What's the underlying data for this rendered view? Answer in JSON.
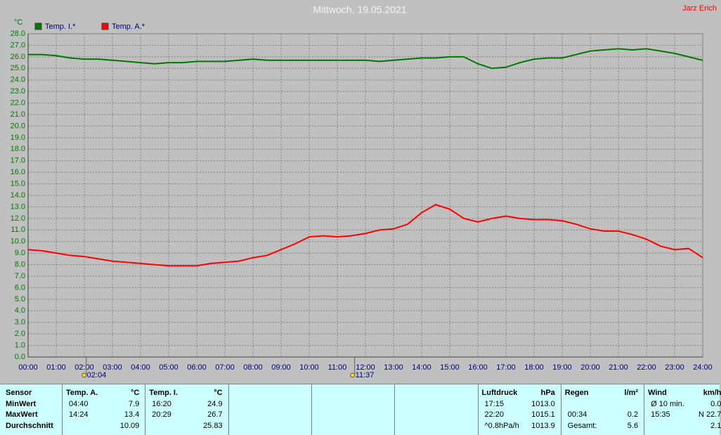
{
  "chart_data": {
    "type": "line",
    "title": "Mittwoch, 19.05.2021",
    "author": "Jarz Erich",
    "y_unit": "°C",
    "x": [
      0,
      0.5,
      1,
      1.5,
      2,
      2.5,
      3,
      3.5,
      4,
      4.5,
      5,
      5.5,
      6,
      6.5,
      7,
      7.5,
      8,
      8.5,
      9,
      9.5,
      10,
      10.5,
      11,
      11.5,
      12,
      12.5,
      13,
      13.5,
      14,
      14.5,
      15,
      15.5,
      16,
      16.5,
      17,
      17.5,
      18,
      18.5,
      19,
      19.5,
      20,
      20.5,
      21,
      21.5,
      22,
      22.5,
      23,
      23.5,
      24
    ],
    "series": [
      {
        "name": "Temp. I.*",
        "color": "#007800",
        "values": [
          26.2,
          26.2,
          26.1,
          25.9,
          25.8,
          25.8,
          25.7,
          25.6,
          25.5,
          25.4,
          25.5,
          25.5,
          25.6,
          25.6,
          25.6,
          25.7,
          25.8,
          25.7,
          25.7,
          25.7,
          25.7,
          25.7,
          25.7,
          25.7,
          25.7,
          25.6,
          25.7,
          25.8,
          25.9,
          25.9,
          26.0,
          26.0,
          25.4,
          25.0,
          25.1,
          25.5,
          25.8,
          25.9,
          25.9,
          26.2,
          26.5,
          26.6,
          26.7,
          26.6,
          26.7,
          26.5,
          26.3,
          26.0,
          25.7
        ]
      },
      {
        "name": "Temp. A.*",
        "color": "#ff0000",
        "values": [
          9.3,
          9.2,
          9.0,
          8.8,
          8.7,
          8.5,
          8.3,
          8.2,
          8.1,
          8.0,
          7.9,
          7.9,
          7.9,
          8.1,
          8.2,
          8.3,
          8.6,
          8.8,
          9.3,
          9.8,
          10.4,
          10.5,
          10.4,
          10.5,
          10.7,
          11.0,
          11.1,
          11.5,
          12.5,
          13.2,
          12.8,
          12.0,
          11.7,
          12.0,
          12.2,
          12.0,
          11.9,
          11.9,
          11.8,
          11.5,
          11.1,
          10.9,
          10.9,
          10.6,
          10.2,
          9.6,
          9.3,
          9.4,
          8.6
        ]
      }
    ],
    "xlim": [
      0,
      24
    ],
    "xticks": [
      {
        "value": 0,
        "label": "00:00"
      },
      {
        "value": 1,
        "label": "01:00"
      },
      {
        "value": 2,
        "label": "02:00"
      },
      {
        "value": 3,
        "label": "03:00"
      },
      {
        "value": 4,
        "label": "04:00"
      },
      {
        "value": 5,
        "label": "05:00"
      },
      {
        "value": 6,
        "label": "06:00"
      },
      {
        "value": 7,
        "label": "07:00"
      },
      {
        "value": 8,
        "label": "08:00"
      },
      {
        "value": 9,
        "label": "09:00"
      },
      {
        "value": 10,
        "label": "10:00"
      },
      {
        "value": 11,
        "label": "11:00"
      },
      {
        "value": 12,
        "label": "12:00"
      },
      {
        "value": 13,
        "label": "13:00"
      },
      {
        "value": 14,
        "label": "14:00"
      },
      {
        "value": 15,
        "label": "15:00"
      },
      {
        "value": 16,
        "label": "16:00"
      },
      {
        "value": 17,
        "label": "17:00"
      },
      {
        "value": 18,
        "label": "18:00"
      },
      {
        "value": 19,
        "label": "19:00"
      },
      {
        "value": 20,
        "label": "20:00"
      },
      {
        "value": 21,
        "label": "21:00"
      },
      {
        "value": 22,
        "label": "22:00"
      },
      {
        "value": 23,
        "label": "23:00"
      },
      {
        "value": 24,
        "label": "24:00"
      }
    ],
    "ylim": [
      0,
      28
    ],
    "yticks": [
      {
        "value": 0,
        "label": "0.0"
      },
      {
        "value": 1,
        "label": "1.0"
      },
      {
        "value": 2,
        "label": "2.0"
      },
      {
        "value": 3,
        "label": "3.0"
      },
      {
        "value": 4,
        "label": "4.0"
      },
      {
        "value": 5,
        "label": "5.0"
      },
      {
        "value": 6,
        "label": "6.0"
      },
      {
        "value": 7,
        "label": "7.0"
      },
      {
        "value": 8,
        "label": "8.0"
      },
      {
        "value": 9,
        "label": "9.0"
      },
      {
        "value": 10,
        "label": "10.0"
      },
      {
        "value": 11,
        "label": "11.0"
      },
      {
        "value": 12,
        "label": "12.0"
      },
      {
        "value": 13,
        "label": "13.0"
      },
      {
        "value": 14,
        "label": "14.0"
      },
      {
        "value": 15,
        "label": "15.0"
      },
      {
        "value": 16,
        "label": "16.0"
      },
      {
        "value": 17,
        "label": "17.0"
      },
      {
        "value": 18,
        "label": "18.0"
      },
      {
        "value": 19,
        "label": "19.0"
      },
      {
        "value": 20,
        "label": "20.0"
      },
      {
        "value": 21,
        "label": "21.0"
      },
      {
        "value": 22,
        "label": "22.0"
      },
      {
        "value": 23,
        "label": "23.0"
      },
      {
        "value": 24,
        "label": "24.0"
      },
      {
        "value": 25,
        "label": "25.0"
      },
      {
        "value": 26,
        "label": "26.0"
      },
      {
        "value": 27,
        "label": "27.0"
      },
      {
        "value": 28,
        "label": "28.0"
      }
    ],
    "grid": true,
    "markers": [
      {
        "label": "02:04"
      },
      {
        "label": "11:37"
      }
    ]
  },
  "table": {
    "row_labels": [
      "Sensor",
      "MinWert",
      "MaxWert",
      "Durchschnitt"
    ],
    "panels": [
      {
        "title": "Temp. A.",
        "unit": "°C",
        "rows": [
          [
            "04:40",
            "7.9"
          ],
          [
            "14:24",
            "13.4"
          ],
          [
            null,
            "10.09"
          ]
        ]
      },
      {
        "title": "Temp. I.",
        "unit": "°C",
        "rows": [
          [
            "16:20",
            "24.9"
          ],
          [
            "20:29",
            "26.7"
          ],
          [
            null,
            "25.83"
          ]
        ]
      },
      null,
      null,
      null,
      {
        "title": "Luftdruck",
        "unit": "hPa",
        "rows": [
          [
            "17:15",
            "1013.0"
          ],
          [
            "22:20",
            "1015.1"
          ],
          [
            "^0.8hPa/h",
            "1013.9"
          ]
        ]
      },
      {
        "title": "Regen",
        "unit": "l/m²",
        "rows": [
          [
            null,
            null
          ],
          [
            "00:34",
            "0.2"
          ],
          [
            "Gesamt:",
            "5.6"
          ]
        ]
      },
      {
        "title": "Wind",
        "unit": "km/h",
        "rows": [
          [
            "Ø 10 min.",
            "0.0"
          ],
          [
            "15:35",
            "N 22.7"
          ],
          [
            null,
            "2.1"
          ]
        ]
      }
    ]
  }
}
